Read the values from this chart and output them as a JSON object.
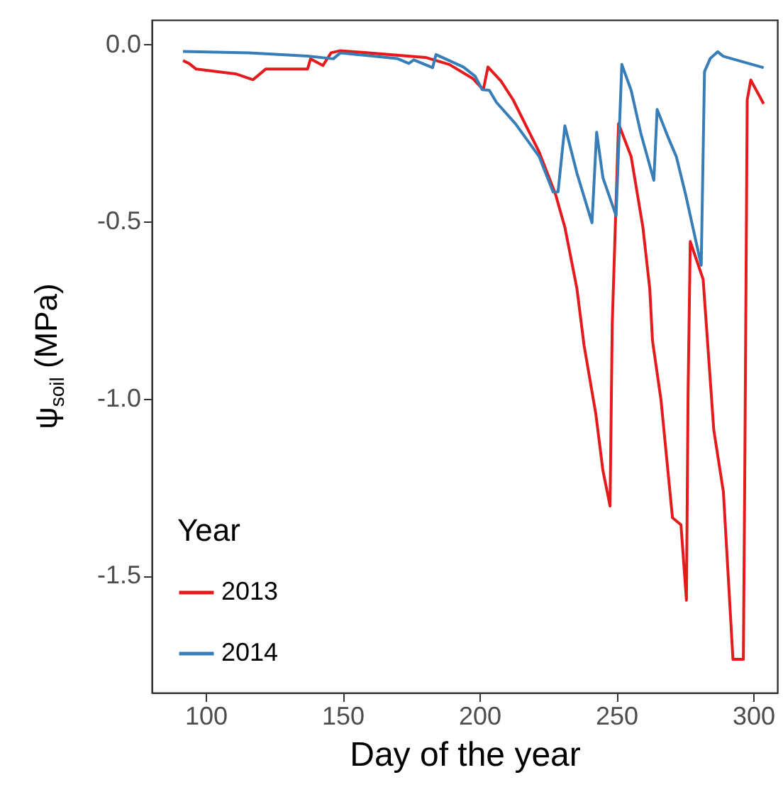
{
  "chart_data": {
    "type": "line",
    "xlabel": "Day of the year",
    "ylabel": "ψ$_{soil}$ (MPa)",
    "legend_title": "Year",
    "legend": "bottom left",
    "grid": false,
    "marker": "none",
    "line_style": "solid",
    "xlim": [
      80.3,
      308.8
    ],
    "xticks": [
      100,
      150,
      200,
      250,
      300
    ],
    "ylim": [
      -1.83,
      0.07
    ],
    "yticks": [
      {
        "value": 0,
        "label": "0.0"
      },
      {
        "value": -0.5,
        "label": "-0.5"
      },
      {
        "value": -1,
        "label": "-1.0"
      },
      {
        "value": -1.5,
        "label": "-1.5"
      }
    ],
    "series": [
      {
        "name": "2013",
        "color": "#e41a1c",
        "x": [
          91.7,
          93.9,
          96.5,
          111.2,
          117.3,
          121.9,
          137.2,
          138.3,
          142.8,
          145.8,
          149.2,
          180.3,
          189.0,
          197.6,
          201.4,
          203.1,
          207.9,
          212.3,
          221.8,
          227.8,
          231.2,
          235.6,
          238.2,
          242.5,
          245.1,
          247.7,
          248.5,
          250.8,
          255.4,
          259.7,
          262.2,
          263.2,
          266.3,
          270.5,
          273.6,
          275.6,
          276.2,
          277.0,
          281.7,
          285.6,
          289.1,
          292.6,
          296.4,
          296.9,
          297.8,
          299.1,
          303.8
        ],
        "values": [
          -0.045,
          -0.053,
          -0.069,
          -0.083,
          -0.099,
          -0.069,
          -0.069,
          -0.04,
          -0.059,
          -0.023,
          -0.017,
          -0.036,
          -0.056,
          -0.096,
          -0.127,
          -0.063,
          -0.103,
          -0.156,
          -0.303,
          -0.423,
          -0.516,
          -0.689,
          -0.849,
          -1.043,
          -1.203,
          -1.303,
          -0.789,
          -0.223,
          -0.316,
          -0.516,
          -0.689,
          -0.836,
          -1.003,
          -1.336,
          -1.356,
          -1.569,
          -0.983,
          -0.556,
          -0.663,
          -1.089,
          -1.263,
          -1.736,
          -1.736,
          -1.223,
          -0.156,
          -0.1,
          -0.167
        ]
      },
      {
        "name": "2014",
        "color": "#377eb8",
        "x": [
          91.7,
          115.9,
          137.2,
          146.6,
          149.2,
          169.9,
          174.2,
          176.0,
          182.9,
          184.1,
          194.1,
          198.4,
          201.0,
          203.6,
          206.2,
          213.1,
          221.8,
          226.9,
          228.7,
          231.2,
          235.6,
          241.1,
          242.8,
          245.1,
          249.9,
          252.0,
          255.4,
          258.9,
          263.7,
          264.9,
          269.3,
          271.9,
          275.3,
          281.0,
          282.2,
          284.3,
          287.0,
          289.1,
          303.8
        ],
        "values": [
          -0.019,
          -0.023,
          -0.032,
          -0.04,
          -0.023,
          -0.039,
          -0.053,
          -0.043,
          -0.065,
          -0.028,
          -0.063,
          -0.089,
          -0.127,
          -0.129,
          -0.163,
          -0.223,
          -0.316,
          -0.416,
          -0.416,
          -0.229,
          -0.363,
          -0.503,
          -0.247,
          -0.376,
          -0.483,
          -0.056,
          -0.129,
          -0.249,
          -0.383,
          -0.183,
          -0.269,
          -0.316,
          -0.423,
          -0.623,
          -0.076,
          -0.039,
          -0.02,
          -0.033,
          -0.065
        ]
      }
    ]
  }
}
